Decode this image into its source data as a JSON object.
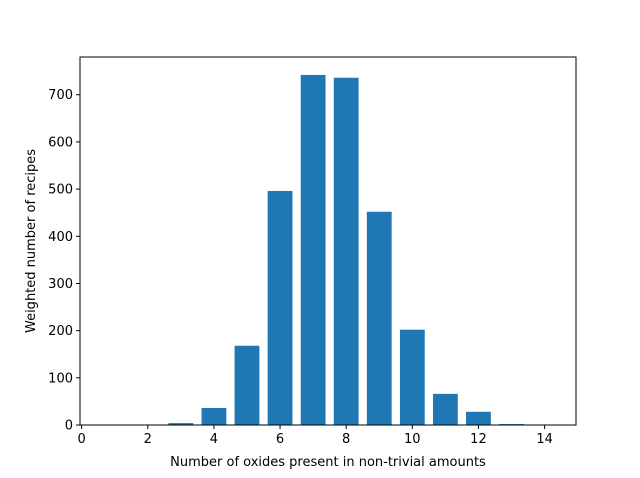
{
  "chart_data": {
    "type": "bar",
    "x": [
      3,
      4,
      5,
      6,
      7,
      8,
      9,
      10,
      11,
      12,
      13
    ],
    "values": [
      4,
      36,
      168,
      496,
      742,
      736,
      452,
      202,
      66,
      28,
      2
    ],
    "bar_width": 0.75,
    "bar_color": "#1f77b4",
    "xlabel": "Number of oxides present in non-trivial amounts",
    "ylabel": "Weighted number of recipes",
    "xlim": [
      -0.05,
      14.95
    ],
    "ylim": [
      0,
      780
    ],
    "x_ticks": [
      0,
      2,
      4,
      6,
      8,
      10,
      12,
      14
    ],
    "y_ticks": [
      0,
      100,
      200,
      300,
      400,
      500,
      600,
      700
    ],
    "grid": false,
    "legend": "none"
  }
}
